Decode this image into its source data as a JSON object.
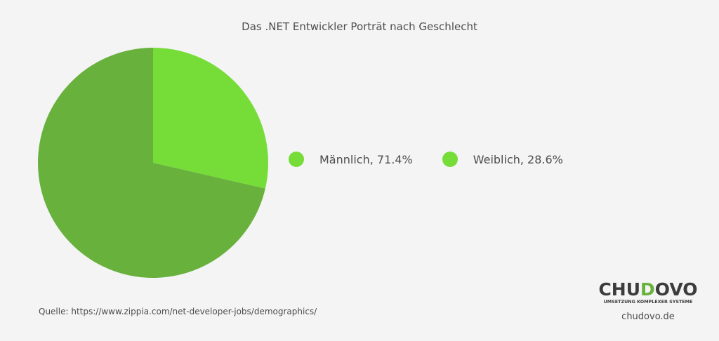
{
  "chart_data": {
    "type": "pie",
    "title": "Das .NET Entwickler Porträt nach Geschlecht",
    "categories": [
      "Männlich",
      "Weiblich"
    ],
    "values": [
      71.4,
      28.6
    ],
    "colors": [
      "#67b13c",
      "#76dc38"
    ],
    "legend": [
      {
        "label": "Männlich, 71.4%",
        "color": "#76dc38"
      },
      {
        "label": "Weiblich, 28.6%",
        "color": "#76dc38"
      }
    ],
    "legend_position": "right"
  },
  "source": "Quelle: https://www.zippia.com/net-developer-jobs/demographics/",
  "logo": {
    "wordmark": "CHUDOVO",
    "tagline": "UMSETZUNG KOMPLEXER SYSTEME",
    "site": "chudovo.de"
  }
}
